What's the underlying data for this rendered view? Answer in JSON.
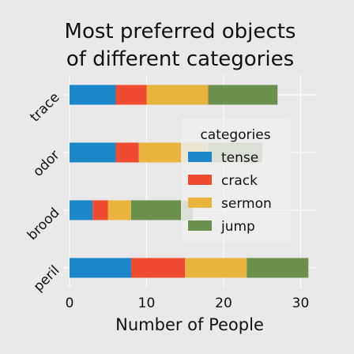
{
  "chart_data": {
    "type": "bar",
    "orientation": "horizontal",
    "stacked": true,
    "title": "Most preferred objects of different categories",
    "title_lines": [
      "Most preferred objects",
      "of different categories"
    ],
    "xlabel": "Number of People",
    "ylabel": "",
    "categories": [
      "trace",
      "odor",
      "brood",
      "peril"
    ],
    "series": [
      {
        "name": "tense",
        "color": "#1b87c9",
        "values": [
          6,
          6,
          3,
          8
        ]
      },
      {
        "name": "crack",
        "color": "#ee4b30",
        "values": [
          4,
          3,
          2,
          7
        ]
      },
      {
        "name": "sermon",
        "color": "#e8b43d",
        "values": [
          8,
          9,
          3,
          8
        ]
      },
      {
        "name": "jump",
        "color": "#6b8f4c",
        "values": [
          9,
          7,
          8,
          8
        ]
      }
    ],
    "xlim": [
      0,
      32
    ],
    "xticks": [
      0,
      10,
      20,
      30
    ],
    "grid": true,
    "legend": {
      "title": "categories",
      "placement": "right"
    }
  },
  "colors": {
    "background": "#e9e9e9",
    "grid": "#ffffff",
    "legend_bg": "#efefef"
  }
}
